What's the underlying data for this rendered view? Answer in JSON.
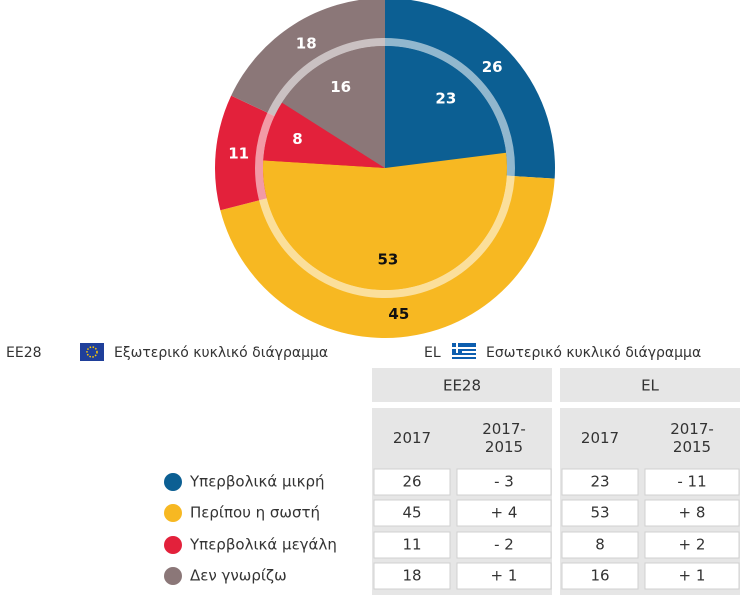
{
  "chart_data": {
    "type": "pie",
    "categories": [
      "Υπερβολικά μικρή",
      "Περίπου η σωστή",
      "Υπερβολικά μεγάλη",
      "Δεν γνωρίζω"
    ],
    "colors": [
      "#0c5f93",
      "#f7b822",
      "#e3213b",
      "#8b7778"
    ],
    "series": [
      {
        "name": "EE28",
        "ring_label": "Εξωτερικό κυκλικό διάγραμμα",
        "values": [
          26,
          45,
          11,
          18
        ]
      },
      {
        "name": "EL",
        "ring_label": "Εσωτερικό κυκλικό διάγραμμα",
        "values": [
          23,
          53,
          8,
          16
        ]
      }
    ]
  },
  "table": {
    "groups": [
      "EE28",
      "EL"
    ],
    "subheaders": [
      "2017",
      "2017-\n2015",
      "2017",
      "2017-\n2015"
    ],
    "rows": [
      [
        "26",
        "- 3",
        "23",
        "- 11"
      ],
      [
        "45",
        "+ 4",
        "53",
        "+ 8"
      ],
      [
        "11",
        "- 2",
        "8",
        "+ 2"
      ],
      [
        "18",
        "+ 1",
        "16",
        "+ 1"
      ]
    ]
  }
}
